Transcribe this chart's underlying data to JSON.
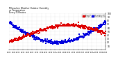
{
  "title_line1": "Milwaukee Weather Outdoor Humidity",
  "title_line2": "vs Temperature",
  "title_line3": "Every 5 Minutes",
  "background_color": "#ffffff",
  "grid_color": "#c8c8c8",
  "plot_bg": "#ffffff",
  "blue_color": "#0000dd",
  "red_color": "#dd0000",
  "legend_blue_label": "Humidity %",
  "legend_red_label": "Temp F",
  "y_min": 0,
  "y_max": 100,
  "marker_size": 0.8,
  "num_points": 288
}
